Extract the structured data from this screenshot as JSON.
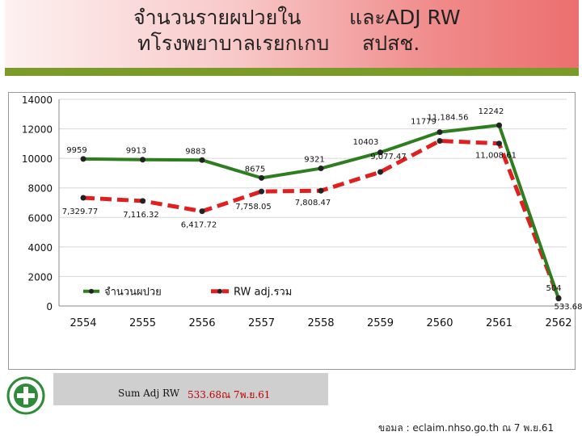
{
  "title": {
    "line1_left": "จำนวนรายผปวยใน",
    "line1_right": "และADJ RW",
    "line2_left": "ทโรงพยาบาลเรยกเกบ",
    "line2_right": "สปสช."
  },
  "footer": {
    "sum_label": "Sum Adj RW",
    "sum_value": "533.68ณ 7พ.ย.61",
    "source": "ขอมล : eclaim.nhso.go.th ณ 7 พ.ย.61"
  },
  "colors": {
    "patients": "#2e7d1e",
    "rw": "#e02020",
    "banner_accent": "#7a9a2a"
  },
  "chart_data": {
    "type": "line",
    "categories": [
      "2554",
      "2555",
      "2556",
      "2557",
      "2558",
      "2559",
      "2560",
      "2561",
      "2562"
    ],
    "ylim": [
      0,
      14000
    ],
    "yticks": [
      0,
      2000,
      4000,
      6000,
      8000,
      10000,
      12000,
      14000
    ],
    "ytick_labels": [
      "0",
      "2000",
      "4000",
      "6000",
      "8000",
      "10000",
      "12000",
      "14000"
    ],
    "grid": "horizontal",
    "legend_position": "bottom-left",
    "series": [
      {
        "name": "จำนวนผปวย",
        "values": [
          9959,
          9913,
          9883,
          8675,
          9321,
          10403,
          11779,
          12242,
          504
        ],
        "labels": [
          "9959",
          "9913",
          "9883",
          "8675",
          "9321",
          "10403",
          "11779",
          "12242",
          "504"
        ]
      },
      {
        "name": "RW adj.รวม",
        "values": [
          7329.77,
          7116.32,
          6417.72,
          7758.05,
          7808.47,
          9077.47,
          11184.56,
          11008.61,
          533.68
        ],
        "labels": [
          "7,329.77",
          "7,116.32",
          "6,417.72",
          "7,758.05",
          "7,808.47",
          "9,077.47",
          "11,184.56",
          "11,008.61",
          "533.68"
        ]
      }
    ]
  }
}
